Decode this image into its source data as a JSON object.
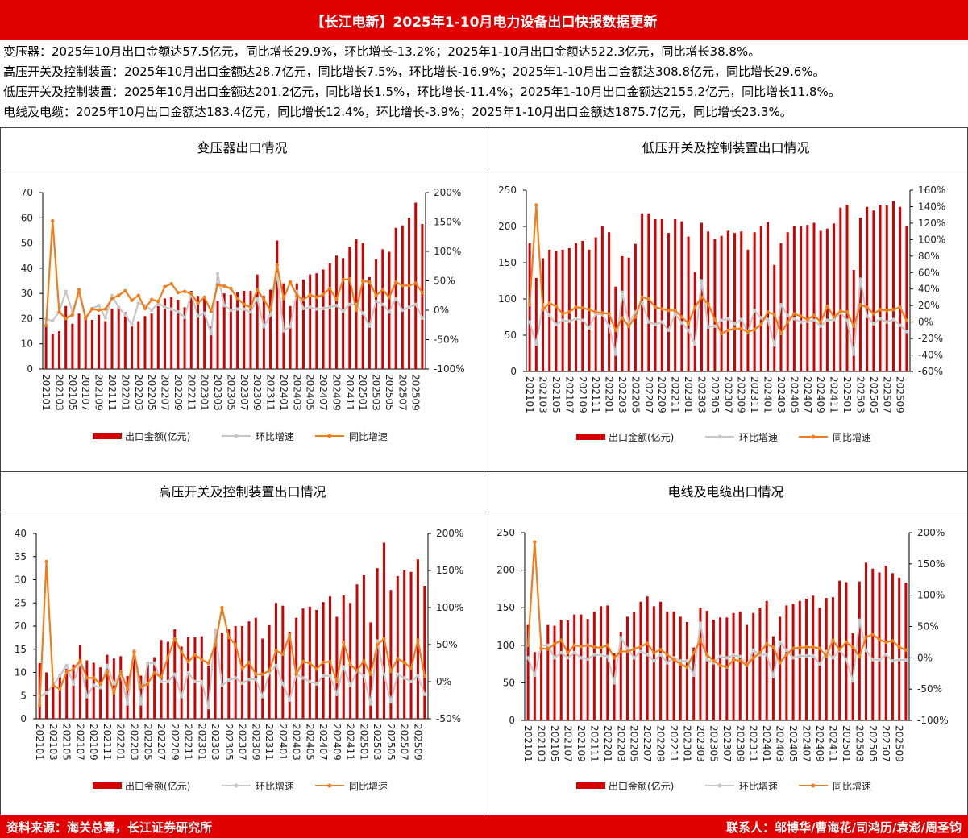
{
  "header": {
    "title": "【长江电新】2025年1-10月电力设备出口快报数据更新"
  },
  "summary": [
    "变压器：2025年10月出口金额达57.5亿元，同比增长29.9%，环比增长-13.2%；2025年1-10月出口金额达522.3亿元，同比增长38.8%。",
    "高压开关及控制装置：2025年10月出口金额达28.7亿元，同比增长7.5%，环比增长-16.9%；2025年1-10月出口金额达308.8亿元，同比增长29.6%。",
    "低压开关及控制装置：2025年10月出口金额达201.2亿元，同比增长1.5%，环比增长-11.4%；2025年1-10月出口金额达2155.2亿元，同比增长11.8%。",
    "电线及电缆：2025年10月出口金额达183.4亿元，同比增长12.4%，环比增长-3.9%；2025年1-10月出口金额达1875.7亿元，同比增长23.3%。"
  ],
  "footer": {
    "source": "资料来源：海关总署，长江证券研究所",
    "contacts": "联系人：邬博华/曹海花/司鸿历/袁澎/周圣钧"
  },
  "colors": {
    "bar": "#d40000",
    "mom": "#c8c8c8",
    "yoy": "#f07d1a",
    "brand": "#e00000"
  },
  "chart_data": [
    {
      "type": "bar+line",
      "title": "变压器出口情况",
      "legend": [
        "出口金额(亿元)",
        "环比增速",
        "同比增速"
      ],
      "legend_position": "bottom",
      "ylim": [
        0,
        70
      ],
      "yticks": [
        0,
        10,
        20,
        30,
        40,
        50,
        60,
        70
      ],
      "y2lim": [
        -100,
        200
      ],
      "y2ticks": [
        -100,
        -50,
        0,
        50,
        100,
        150,
        200
      ],
      "categories": [
        "202101",
        "202102",
        "202103",
        "202104",
        "202105",
        "202106",
        "202107",
        "202108",
        "202109",
        "202110",
        "202111",
        "202112",
        "202201",
        "202202",
        "202203",
        "202204",
        "202205",
        "202206",
        "202207",
        "202208",
        "202209",
        "202210",
        "202211",
        "202212",
        "202301",
        "202302",
        "202303",
        "202304",
        "202305",
        "202306",
        "202307",
        "202308",
        "202309",
        "202310",
        "202311",
        "202312",
        "202401",
        "202402",
        "202403",
        "202404",
        "202405",
        "202406",
        "202407",
        "202408",
        "202409",
        "202410",
        "202411",
        "202412",
        "202501",
        "202502",
        "202503",
        "202504",
        "202505",
        "202506",
        "202507",
        "202508",
        "202509",
        "202510"
      ],
      "series": [
        {
          "name": "出口金额(亿元)",
          "axis": "left",
          "values": [
            17,
            14,
            15,
            25,
            18,
            22,
            20,
            19.5,
            21.5,
            19,
            24,
            24,
            22.5,
            17,
            19,
            21,
            22,
            25,
            28,
            28.5,
            27.5,
            24.5,
            31,
            29,
            28,
            17,
            27,
            30,
            29.5,
            30.5,
            31,
            31,
            37.5,
            29,
            31.5,
            51,
            34,
            25,
            34,
            35.5,
            37.5,
            38,
            39.5,
            42,
            45,
            44,
            48.5,
            51.5,
            50,
            36.5,
            43.5,
            47.5,
            46.5,
            56,
            57,
            60,
            66,
            57.5
          ]
        },
        {
          "name": "环比增速",
          "axis": "right",
          "values": [
            -15,
            -18,
            -3,
            32,
            -2,
            28,
            -12,
            3,
            8,
            -13,
            25,
            5,
            -8,
            -25,
            12,
            8,
            0,
            12,
            5,
            2,
            -3,
            -12,
            28,
            -10,
            -5,
            -40,
            62,
            8,
            0,
            2,
            2,
            -3,
            20,
            -28,
            -8,
            62,
            -35,
            -28,
            32,
            3,
            5,
            2,
            3,
            5,
            8,
            -2,
            10,
            10,
            -5,
            -27,
            15,
            10,
            -3,
            20,
            0,
            5,
            10,
            -13.2
          ]
        },
        {
          "name": "同比增速",
          "axis": "right",
          "values": [
            -26,
            152,
            -3,
            -14,
            -8,
            35,
            -14,
            2,
            0,
            2,
            20,
            25,
            33,
            17,
            25,
            3,
            18,
            15,
            40,
            45,
            30,
            32,
            28,
            12,
            22,
            -2,
            43,
            41,
            37,
            20,
            10,
            5,
            35,
            18,
            0,
            77,
            20,
            48,
            25,
            18,
            26,
            22,
            27,
            37,
            18,
            52,
            53,
            0,
            50,
            48,
            25,
            35,
            22,
            48,
            42,
            42,
            46,
            29.9
          ]
        }
      ]
    },
    {
      "type": "bar+line",
      "title": "低压开关及控制装置出口情况",
      "legend": [
        "出口金额(亿元)",
        "环比增速",
        "同比增速"
      ],
      "legend_position": "bottom",
      "ylim": [
        0,
        250
      ],
      "yticks": [
        0,
        50,
        100,
        150,
        200,
        250
      ],
      "y2lim": [
        -60,
        160
      ],
      "y2ticks": [
        -60,
        -40,
        -20,
        0,
        20,
        40,
        60,
        80,
        100,
        120,
        140,
        160
      ],
      "categories": [
        "202101",
        "202102",
        "202103",
        "202104",
        "202105",
        "202106",
        "202107",
        "202108",
        "202109",
        "202110",
        "202111",
        "202112",
        "202201",
        "202202",
        "202203",
        "202204",
        "202205",
        "202206",
        "202207",
        "202208",
        "202209",
        "202210",
        "202211",
        "202212",
        "202301",
        "202302",
        "202303",
        "202304",
        "202305",
        "202306",
        "202307",
        "202308",
        "202309",
        "202310",
        "202311",
        "202312",
        "202401",
        "202402",
        "202403",
        "202404",
        "202405",
        "202406",
        "202407",
        "202408",
        "202409",
        "202410",
        "202411",
        "202412",
        "202501",
        "202502",
        "202503",
        "202504",
        "202505",
        "202506",
        "202507",
        "202508",
        "202509",
        "202510"
      ],
      "series": [
        {
          "name": "出口金额(亿元)",
          "axis": "left",
          "values": [
            177,
            129,
            156,
            168,
            166,
            168,
            170,
            177,
            180,
            168,
            185,
            201,
            192,
            117,
            159,
            157,
            176,
            218,
            218,
            210,
            210,
            191,
            210,
            207,
            186,
            137,
            205,
            193,
            183,
            187,
            194,
            191,
            193,
            168,
            192,
            201,
            206,
            147,
            177,
            192,
            201,
            200,
            202,
            205,
            194,
            197,
            204,
            226,
            230,
            140,
            212,
            227,
            222,
            230,
            229,
            235,
            227,
            201.2
          ]
        },
        {
          "name": "环比增速",
          "axis": "right",
          "values": [
            0,
            -27,
            21,
            8,
            -3,
            2,
            1,
            4,
            2,
            -7,
            10,
            9,
            -5,
            -39,
            36,
            -2,
            12,
            24,
            0,
            -3,
            0,
            -10,
            10,
            -1,
            -10,
            -27,
            50,
            -6,
            -5,
            2,
            4,
            -2,
            3,
            -13,
            14,
            5,
            3,
            -28,
            21,
            8,
            4,
            0,
            1,
            2,
            -5,
            2,
            3,
            11,
            2,
            -39,
            52,
            7,
            -2,
            4,
            0,
            3,
            -4,
            -11.4
          ]
        },
        {
          "name": "同比增速",
          "axis": "right",
          "values": [
            21,
            142,
            15,
            23,
            19,
            10,
            12,
            18,
            17,
            15,
            12,
            11,
            10,
            -10,
            5,
            -5,
            6,
            30,
            28,
            18,
            16,
            14,
            14,
            6,
            -2,
            18,
            30,
            22,
            3,
            -14,
            -10,
            -8,
            -8,
            -12,
            -9,
            -3,
            12,
            9,
            -14,
            0,
            10,
            7,
            3,
            8,
            0,
            19,
            6,
            13,
            12,
            -5,
            21,
            18,
            10,
            15,
            14,
            15,
            18,
            1.5
          ]
        }
      ]
    },
    {
      "type": "bar+line",
      "title": "高压开关及控制装置出口情况",
      "legend": [
        "出口金额(亿元)",
        "环比增速",
        "同比增速"
      ],
      "legend_position": "bottom",
      "ylim": [
        0,
        40
      ],
      "yticks": [
        0,
        5,
        10,
        15,
        20,
        25,
        30,
        35,
        40
      ],
      "y2lim": [
        -50,
        200
      ],
      "y2ticks": [
        -50,
        0,
        50,
        100,
        150,
        200
      ],
      "categories": [
        "202101",
        "202102",
        "202103",
        "202104",
        "202105",
        "202106",
        "202107",
        "202108",
        "202109",
        "202110",
        "202111",
        "202112",
        "202201",
        "202202",
        "202203",
        "202204",
        "202205",
        "202206",
        "202207",
        "202208",
        "202209",
        "202210",
        "202211",
        "202212",
        "202301",
        "202302",
        "202303",
        "202304",
        "202305",
        "202306",
        "202307",
        "202308",
        "202309",
        "202310",
        "202311",
        "202312",
        "202401",
        "202402",
        "202403",
        "202404",
        "202405",
        "202406",
        "202407",
        "202408",
        "202409",
        "202410",
        "202411",
        "202412",
        "202501",
        "202502",
        "202503",
        "202504",
        "202505",
        "202506",
        "202507",
        "202508",
        "202509",
        "202510"
      ],
      "series": [
        {
          "name": "出口金额(亿元)",
          "axis": "left",
          "values": [
            12,
            10,
            7,
            9.7,
            10.8,
            11.7,
            16,
            12.6,
            12.1,
            11.1,
            13.8,
            13,
            13.5,
            9.2,
            13,
            9.3,
            12,
            13.3,
            17,
            16.6,
            19.3,
            15.6,
            17.6,
            17.6,
            17.8,
            11.5,
            19,
            18.6,
            19.3,
            20,
            20,
            21,
            21.8,
            17.3,
            20.2,
            25,
            24.4,
            18.8,
            21.8,
            23.8,
            24.2,
            23.5,
            25.2,
            26.4,
            22,
            26.6,
            25,
            29,
            31.1,
            20.8,
            32.5,
            38,
            27.8,
            30.8,
            32,
            31.7,
            34.4,
            28.7
          ]
        },
        {
          "name": "环比增速",
          "axis": "right",
          "values": [
            -20,
            -15,
            -5,
            8,
            22,
            -3,
            27,
            -20,
            -5,
            -8,
            22,
            -3,
            10,
            -30,
            42,
            -30,
            25,
            25,
            0,
            0,
            10,
            -20,
            12,
            0,
            0,
            -35,
            70,
            -5,
            2,
            5,
            -2,
            3,
            3,
            -20,
            12,
            22,
            -3,
            -25,
            10,
            5,
            0,
            -3,
            8,
            8,
            -17,
            20,
            -5,
            15,
            8,
            -30,
            55,
            10,
            -27,
            10,
            5,
            0,
            8,
            -16.9
          ]
        },
        {
          "name": "同比增速",
          "axis": "right",
          "values": [
            -32,
            162,
            -5,
            -10,
            13,
            17,
            28,
            5,
            5,
            -3,
            13,
            -15,
            13,
            -10,
            40,
            -7,
            -3,
            12,
            6,
            33,
            58,
            40,
            27,
            36,
            30,
            25,
            50,
            100,
            60,
            50,
            17,
            26,
            10,
            10,
            15,
            42,
            37,
            63,
            10,
            27,
            25,
            17,
            26,
            27,
            0,
            53,
            23,
            15,
            28,
            10,
            50,
            58,
            14,
            31,
            26,
            18,
            56,
            7.5
          ]
        }
      ]
    },
    {
      "type": "bar+line",
      "title": "电线及电缆出口情况",
      "legend": [
        "出口金额(亿元)",
        "环比增速",
        "同比增速"
      ],
      "legend_position": "bottom",
      "ylim": [
        0,
        250
      ],
      "yticks": [
        0,
        50,
        100,
        150,
        200,
        250
      ],
      "y2lim": [
        -100,
        200
      ],
      "y2ticks": [
        -100,
        -50,
        0,
        50,
        100,
        150,
        200
      ],
      "categories": [
        "202101",
        "202102",
        "202103",
        "202104",
        "202105",
        "202106",
        "202107",
        "202108",
        "202109",
        "202110",
        "202111",
        "202112",
        "202201",
        "202202",
        "202203",
        "202204",
        "202205",
        "202206",
        "202207",
        "202208",
        "202209",
        "202210",
        "202211",
        "202212",
        "202301",
        "202302",
        "202303",
        "202304",
        "202305",
        "202306",
        "202307",
        "202308",
        "202309",
        "202310",
        "202311",
        "202312",
        "202401",
        "202402",
        "202403",
        "202404",
        "202405",
        "202406",
        "202407",
        "202408",
        "202409",
        "202410",
        "202411",
        "202412",
        "202501",
        "202502",
        "202503",
        "202504",
        "202505",
        "202506",
        "202507",
        "202508",
        "202509",
        "202510"
      ],
      "series": [
        {
          "name": "出口金额(亿元)",
          "axis": "left",
          "values": [
            127,
            91,
            100,
            127,
            126,
            134,
            133,
            141,
            141,
            135,
            145,
            152,
            153,
            89,
            118,
            138,
            144,
            158,
            165,
            152,
            158,
            145,
            145,
            138,
            131,
            97,
            150,
            146,
            134,
            137,
            137,
            143,
            145,
            127,
            143,
            150,
            159,
            112,
            138,
            153,
            155,
            159,
            162,
            166,
            150,
            163,
            164,
            186,
            184,
            116,
            185,
            210,
            202,
            197,
            206,
            196,
            190,
            183.4
          ]
        },
        {
          "name": "环比增速",
          "axis": "right",
          "values": [
            0,
            -28,
            20,
            20,
            0,
            8,
            0,
            8,
            0,
            -2,
            5,
            4,
            2,
            -40,
            32,
            15,
            0,
            10,
            5,
            -5,
            5,
            -8,
            0,
            -5,
            -5,
            -28,
            55,
            -3,
            -8,
            2,
            0,
            4,
            2,
            -12,
            12,
            5,
            5,
            -30,
            25,
            12,
            0,
            3,
            3,
            3,
            -10,
            10,
            0,
            12,
            -2,
            -37,
            60,
            12,
            -3,
            -3,
            5,
            -5,
            -3,
            -3.9
          ]
        },
        {
          "name": "同比增速",
          "axis": "right",
          "values": [
            20,
            185,
            15,
            14,
            22,
            28,
            8,
            20,
            18,
            20,
            17,
            16,
            20,
            0,
            10,
            10,
            14,
            18,
            23,
            8,
            13,
            5,
            -3,
            -10,
            -15,
            8,
            28,
            5,
            -5,
            -12,
            -15,
            -3,
            -5,
            -12,
            0,
            8,
            22,
            17,
            -8,
            5,
            15,
            16,
            17,
            17,
            15,
            3,
            28,
            13,
            25,
            17,
            2,
            33,
            37,
            29,
            25,
            27,
            17,
            12.4
          ]
        }
      ]
    }
  ]
}
